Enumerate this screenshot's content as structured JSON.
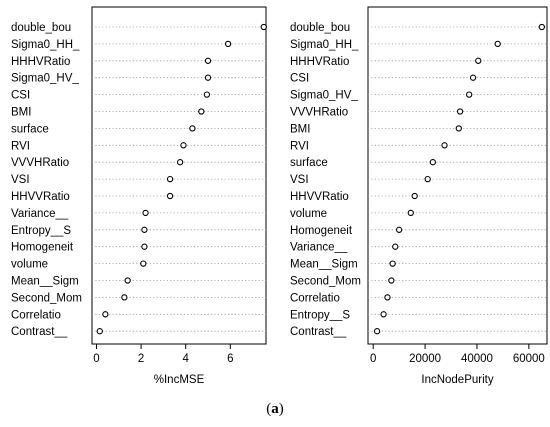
{
  "caption": {
    "open": "(",
    "letter": "a",
    "close": ")"
  },
  "chart_data": [
    {
      "type": "scatter",
      "title": "",
      "xlabel": "%IncMSE",
      "ylabel": "",
      "xlim": [
        -0.2,
        7.6
      ],
      "xticks": [
        0,
        2,
        4,
        6
      ],
      "grid": "dotted horizontal lines",
      "marker": "open circle",
      "categories": [
        "double_bou",
        "Sigma0_HH_",
        "HHHVRatio",
        "Sigma0_HV_",
        "CSI",
        "BMI",
        "surface",
        "RVI",
        "VVVHRatio",
        "VSI",
        "HHVVRatio",
        "Variance__",
        "Entropy__S",
        "Homogeneit",
        "volume",
        "Mean__Sigm",
        "Second_Mom",
        "Correlatio",
        "Contrast__"
      ],
      "values": [
        7.5,
        5.9,
        5.0,
        5.0,
        4.95,
        4.7,
        4.3,
        3.9,
        3.75,
        3.3,
        3.3,
        2.2,
        2.15,
        2.15,
        2.1,
        1.4,
        1.25,
        0.4,
        0.15
      ]
    },
    {
      "type": "scatter",
      "title": "",
      "xlabel": "IncNodePurity",
      "ylabel": "",
      "xlim": [
        -2000,
        67000
      ],
      "xticks": [
        0,
        20000,
        40000,
        60000
      ],
      "grid": "dotted horizontal lines",
      "marker": "open circle",
      "categories": [
        "double_bou",
        "Sigma0_HH_",
        "HHHVRatio",
        "CSI",
        "Sigma0_HV_",
        "VVVHRatio",
        "BMI",
        "RVI",
        "surface",
        "VSI",
        "HHVVRatio",
        "volume",
        "Homogeneit",
        "Variance__",
        "Mean__Sigm",
        "Second_Mom",
        "Correlatio",
        "Entropy__S",
        "Contrast__"
      ],
      "values": [
        65000,
        48000,
        40500,
        38500,
        37000,
        33500,
        33000,
        27500,
        23000,
        21000,
        16000,
        14500,
        10000,
        8500,
        7500,
        7000,
        5500,
        4000,
        1500
      ]
    }
  ]
}
